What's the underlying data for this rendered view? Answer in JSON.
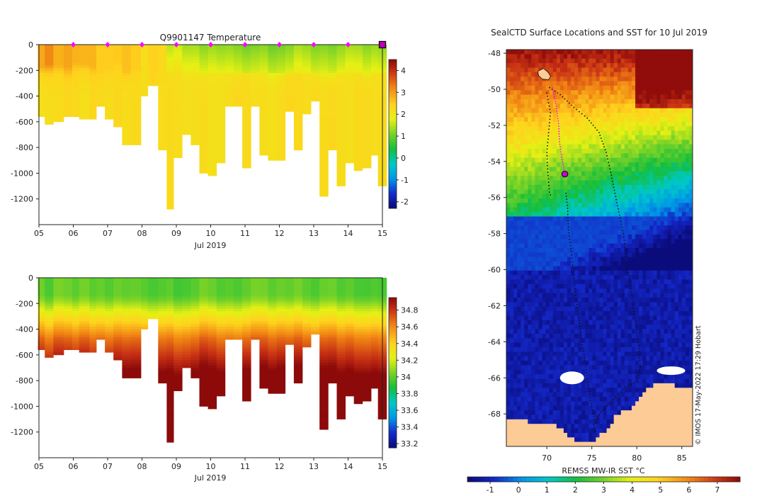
{
  "chart_data": [
    {
      "type": "heatmap",
      "title": "Q9901147  Temperature",
      "variable": "temperature",
      "xlabel": "Jul 2019",
      "x_ticks": [
        "05",
        "06",
        "07",
        "08",
        "09",
        "10",
        "11",
        "12",
        "13",
        "14",
        "15"
      ],
      "x_range": [
        5,
        15
      ],
      "y_ticks": [
        "0",
        "-200",
        "-400",
        "-600",
        "-800",
        "-1000",
        "-1200"
      ],
      "ylim": [
        -1400,
        0
      ],
      "colorbar": {
        "ticks": [
          "4",
          "3",
          "2",
          "1",
          "0",
          "-1",
          "-2"
        ],
        "range": [
          -2.3,
          4.5
        ]
      },
      "profile_markers_days": [
        6,
        7,
        8,
        9,
        10,
        11,
        12,
        13,
        14
      ],
      "current_marker_day": 15,
      "profiles": [
        {
          "t": 5.1,
          "depth": 560
        },
        {
          "t": 5.3,
          "depth": 610
        },
        {
          "t": 5.55,
          "depth": 590
        },
        {
          "t": 5.85,
          "depth": 560
        },
        {
          "t": 6.1,
          "depth": 555
        },
        {
          "t": 6.3,
          "depth": 580
        },
        {
          "t": 6.6,
          "depth": 580
        },
        {
          "t": 6.8,
          "depth": 480
        },
        {
          "t": 7.05,
          "depth": 570
        },
        {
          "t": 7.3,
          "depth": 640
        },
        {
          "t": 7.55,
          "depth": 770
        },
        {
          "t": 7.8,
          "depth": 780
        },
        {
          "t": 8.1,
          "depth": 390
        },
        {
          "t": 8.3,
          "depth": 310
        },
        {
          "t": 8.6,
          "depth": 810
        },
        {
          "t": 8.85,
          "depth": 1280
        },
        {
          "t": 9.05,
          "depth": 870
        },
        {
          "t": 9.3,
          "depth": 700
        },
        {
          "t": 9.55,
          "depth": 770
        },
        {
          "t": 9.8,
          "depth": 1000
        },
        {
          "t": 10.05,
          "depth": 1020
        },
        {
          "t": 10.3,
          "depth": 920
        },
        {
          "t": 10.55,
          "depth": 470
        },
        {
          "t": 10.8,
          "depth": 470
        },
        {
          "t": 11.05,
          "depth": 960
        },
        {
          "t": 11.3,
          "depth": 470
        },
        {
          "t": 11.55,
          "depth": 850
        },
        {
          "t": 11.8,
          "depth": 890
        },
        {
          "t": 12.05,
          "depth": 890
        },
        {
          "t": 12.3,
          "depth": 520
        },
        {
          "t": 12.55,
          "depth": 820
        },
        {
          "t": 12.8,
          "depth": 540
        },
        {
          "t": 13.05,
          "depth": 440
        },
        {
          "t": 13.3,
          "depth": 1170
        },
        {
          "t": 13.55,
          "depth": 820
        },
        {
          "t": 13.8,
          "depth": 1100
        },
        {
          "t": 14.05,
          "depth": 910
        },
        {
          "t": 14.3,
          "depth": 980
        },
        {
          "t": 14.55,
          "depth": 950
        },
        {
          "t": 14.8,
          "depth": 860
        },
        {
          "t": 15.0,
          "depth": 1090
        }
      ]
    },
    {
      "type": "heatmap",
      "title": "",
      "variable": "salinity",
      "xlabel": "Jul 2019",
      "x_ticks": [
        "05",
        "06",
        "07",
        "08",
        "09",
        "10",
        "11",
        "12",
        "13",
        "14",
        "15"
      ],
      "x_range": [
        5,
        15
      ],
      "y_ticks": [
        "0",
        "-200",
        "-400",
        "-600",
        "-800",
        "-1000",
        "-1200"
      ],
      "ylim": [
        -1400,
        0
      ],
      "colorbar": {
        "ticks": [
          "34.8",
          "34.6",
          "34.4",
          "34.2",
          "34",
          "33.8",
          "33.6",
          "33.4",
          "33.2"
        ],
        "range": [
          33.15,
          34.95
        ]
      }
    },
    {
      "type": "heatmap",
      "title": "SealCTD Surface Locations and SST for 10 Jul 2019",
      "x_ticks": [
        "70",
        "75",
        "80",
        "85"
      ],
      "x_range": [
        65.5,
        86.2
      ],
      "y_ticks": [
        "-48",
        "-50",
        "-52",
        "-54",
        "-56",
        "-58",
        "-60",
        "-62",
        "-64",
        "-66",
        "-68"
      ],
      "ylim": [
        -69.8,
        -47.8
      ],
      "colorbar": {
        "label": "REMSS MW-IR SST °C",
        "ticks": [
          "-1",
          "0",
          "1",
          "2",
          "3",
          "4",
          "5",
          "6",
          "7"
        ],
        "range": [
          -1.8,
          7.8
        ]
      },
      "credit": "© IMOS 17-May-2022 17:29 Hobart",
      "current_position": {
        "lon": 72.0,
        "lat": -54.7
      }
    }
  ]
}
